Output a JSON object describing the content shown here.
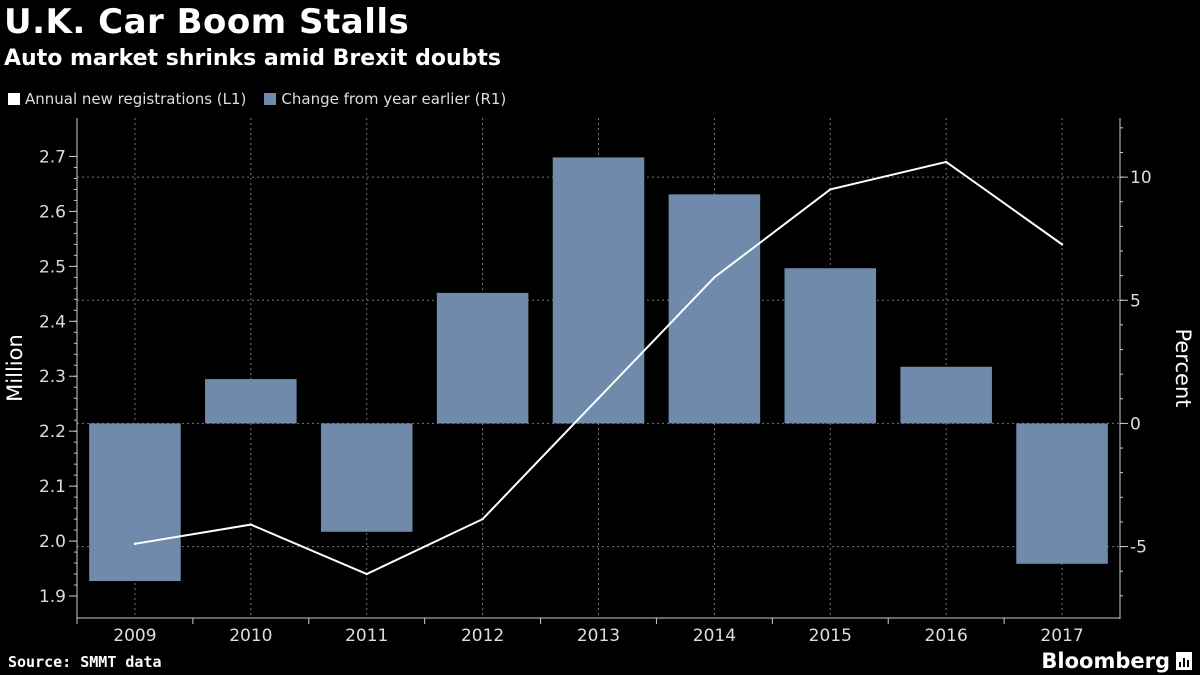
{
  "header": {
    "title": "U.K. Car Boom Stalls",
    "subtitle": "Auto market shrinks amid Brexit doubts"
  },
  "legend": [
    {
      "label": "Annual new registrations (L1)",
      "color": "#ffffff"
    },
    {
      "label": "Change from year earlier (R1)",
      "color": "#6f8aaa"
    }
  ],
  "footer": {
    "source": "Source: SMMT data",
    "brand": "Bloomberg"
  },
  "chart_data": {
    "type": "bar",
    "categories": [
      "2009",
      "2010",
      "2011",
      "2012",
      "2013",
      "2014",
      "2015",
      "2016",
      "2017"
    ],
    "series": [
      {
        "name": "Change from year earlier (R1)",
        "type": "bar",
        "axis": "right",
        "values": [
          -6.4,
          1.8,
          -4.4,
          5.3,
          10.8,
          9.3,
          6.3,
          2.3,
          -5.7
        ]
      },
      {
        "name": "Annual new registrations (L1)",
        "type": "line",
        "axis": "left",
        "values": [
          1.995,
          2.03,
          1.94,
          2.04,
          2.26,
          2.48,
          2.64,
          2.69,
          2.54
        ]
      }
    ],
    "y_left": {
      "label": "Million",
      "range": [
        1.86,
        2.77
      ],
      "ticks": [
        "1.9",
        "2.0",
        "2.1",
        "2.2",
        "2.3",
        "2.4",
        "2.5",
        "2.6",
        "2.7"
      ]
    },
    "y_right": {
      "label": "Percent",
      "range": [
        -7.9,
        12.4
      ],
      "ticks": [
        "-5",
        "0",
        "5",
        "10"
      ]
    },
    "grid": true,
    "legend_position": "top-left"
  }
}
